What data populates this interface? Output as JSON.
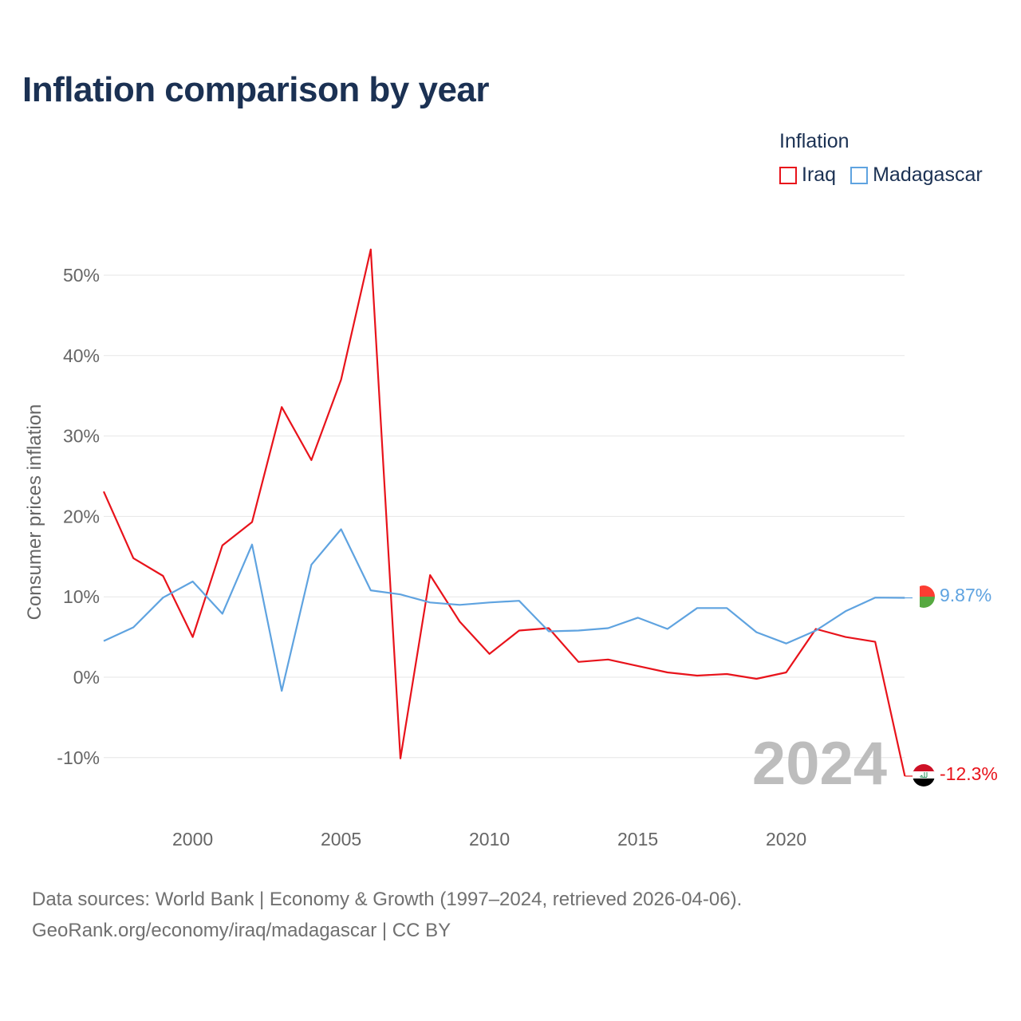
{
  "title": "Inflation comparison by year",
  "legend": {
    "title": "Inflation",
    "items": [
      {
        "name": "Iraq",
        "color": "#e8131b"
      },
      {
        "name": "Madagascar",
        "color": "#5fa3e0"
      }
    ]
  },
  "footer": {
    "line1": "Data sources: World Bank | Economy & Growth (1997–2024, retrieved 2026-04-06).",
    "line2": "GeoRank.org/economy/iraq/madagascar | CC BY"
  },
  "chart_data": {
    "type": "line",
    "title": "Inflation comparison by year",
    "xlabel": "",
    "ylabel": "Consumer prices inflation",
    "x": [
      1997,
      1998,
      1999,
      2000,
      2001,
      2002,
      2003,
      2004,
      2005,
      2006,
      2007,
      2008,
      2009,
      2010,
      2011,
      2012,
      2013,
      2014,
      2015,
      2016,
      2017,
      2018,
      2019,
      2020,
      2021,
      2022,
      2023,
      2024
    ],
    "xlim": [
      1997,
      2024
    ],
    "ylim": [
      -14,
      55
    ],
    "x_ticks": [
      2000,
      2005,
      2010,
      2015,
      2020
    ],
    "x_tick_labels": [
      "2000",
      "2005",
      "2010",
      "2015",
      "2020"
    ],
    "y_ticks": [
      -10,
      0,
      10,
      20,
      30,
      40,
      50
    ],
    "y_tick_labels": [
      "-10%",
      "0%",
      "10%",
      "20%",
      "30%",
      "40%",
      "50%"
    ],
    "grid": true,
    "year_watermark": "2024",
    "series": [
      {
        "name": "Iraq",
        "color": "#e8131b",
        "values": [
          23.1,
          14.8,
          12.6,
          5.0,
          16.4,
          19.3,
          33.6,
          27.0,
          37.0,
          53.2,
          -10.1,
          12.7,
          6.9,
          2.9,
          5.8,
          6.1,
          1.9,
          2.2,
          1.4,
          0.6,
          0.2,
          0.4,
          -0.2,
          0.6,
          6.0,
          5.0,
          4.4,
          -12.3
        ],
        "end_label": "-12.3%",
        "flag": "iraq-flag-icon"
      },
      {
        "name": "Madagascar",
        "color": "#5fa3e0",
        "values": [
          4.5,
          6.2,
          9.9,
          11.9,
          7.9,
          16.5,
          -1.7,
          14.0,
          18.4,
          10.8,
          10.3,
          9.3,
          9.0,
          9.3,
          9.5,
          5.7,
          5.8,
          6.1,
          7.4,
          6.0,
          8.6,
          8.6,
          5.6,
          4.2,
          5.8,
          8.2,
          9.9,
          9.87
        ],
        "end_label": "9.87%",
        "flag": "madagascar-flag-icon"
      }
    ]
  }
}
